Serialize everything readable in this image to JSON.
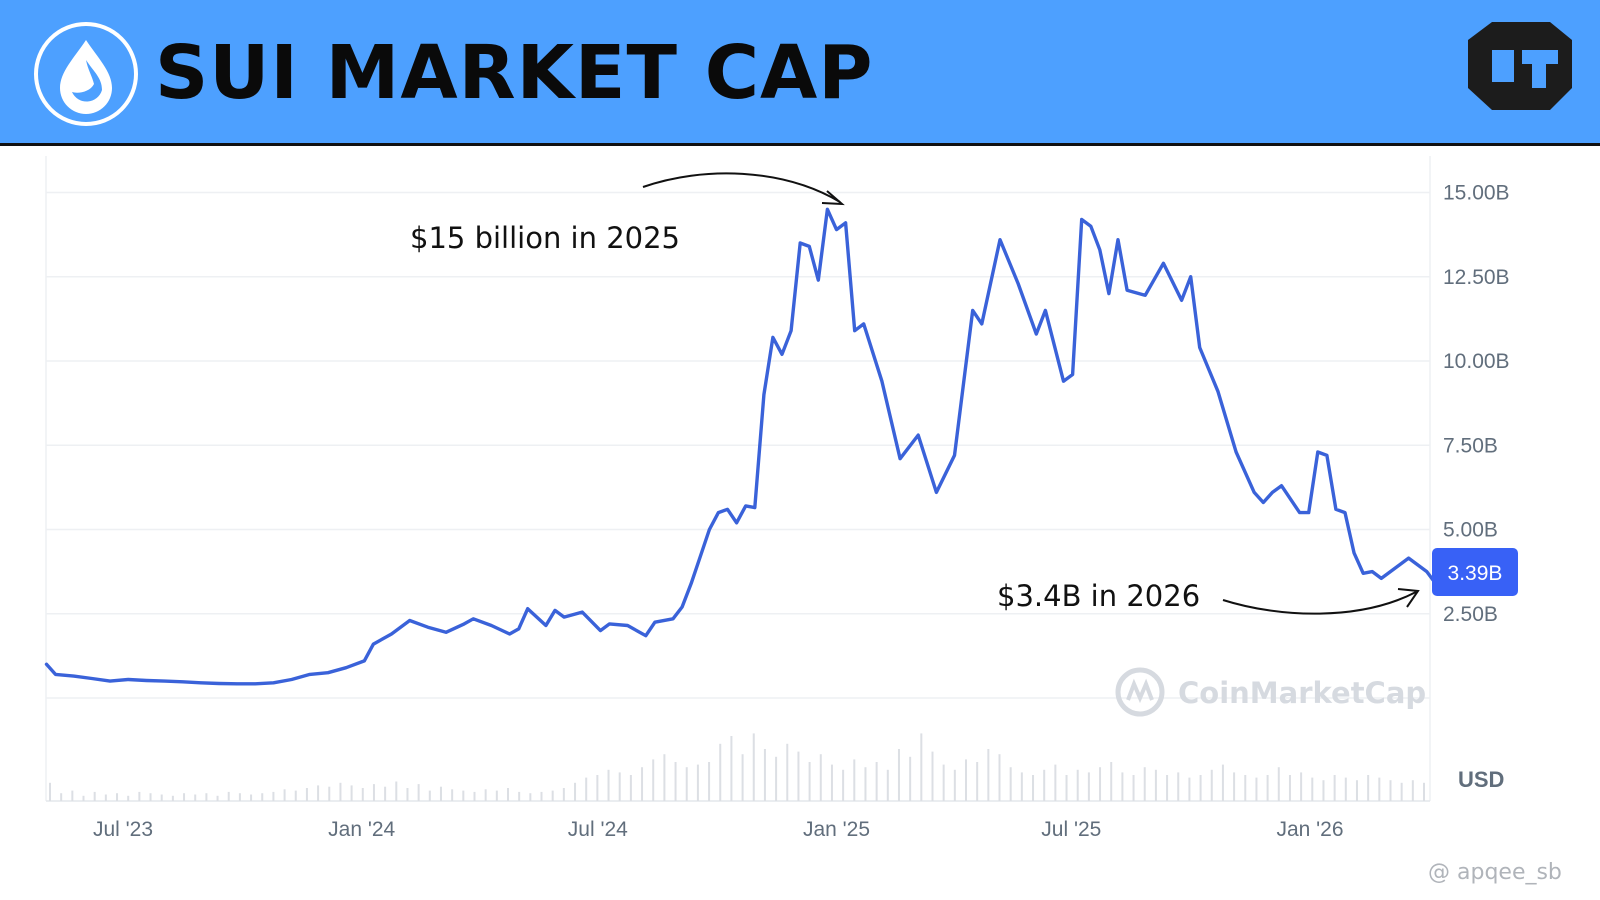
{
  "header": {
    "title": "SUI MARKET CAP",
    "background_color": "#4da0ff",
    "left_logo": "sui-drop-logo",
    "right_logo": "cube-brand-logo"
  },
  "chart_data": {
    "type": "line",
    "title": "SUI MARKET CAP",
    "y_unit": "USD",
    "ylim": [
      0,
      16
    ],
    "y_ticks": [
      2.5,
      5,
      7.5,
      10,
      12.5,
      15
    ],
    "y_tick_labels": [
      "2.50B",
      "5.00B",
      "7.50B",
      "10.00B",
      "12.50B",
      "15.00B"
    ],
    "x_tick_labels": [
      "Jul '23",
      "Jan '24",
      "Jul '24",
      "Jan '25",
      "Jul '25",
      "Jan '26"
    ],
    "x_tick_dates": [
      "2023-07-01",
      "2024-01-01",
      "2024-07-01",
      "2025-01-01",
      "2025-07-01",
      "2026-01-01"
    ],
    "series": [
      {
        "color": "#3a62d9",
        "points": [
          [
            "2023-05-03",
            1.0
          ],
          [
            "2023-05-10",
            0.7
          ],
          [
            "2023-05-24",
            0.65
          ],
          [
            "2023-06-07",
            0.58
          ],
          [
            "2023-06-21",
            0.5
          ],
          [
            "2023-07-05",
            0.55
          ],
          [
            "2023-07-19",
            0.52
          ],
          [
            "2023-08-02",
            0.5
          ],
          [
            "2023-08-16",
            0.48
          ],
          [
            "2023-08-30",
            0.45
          ],
          [
            "2023-09-13",
            0.43
          ],
          [
            "2023-09-27",
            0.42
          ],
          [
            "2023-10-11",
            0.42
          ],
          [
            "2023-10-25",
            0.45
          ],
          [
            "2023-11-08",
            0.55
          ],
          [
            "2023-11-22",
            0.7
          ],
          [
            "2023-12-06",
            0.75
          ],
          [
            "2023-12-20",
            0.9
          ],
          [
            "2024-01-03",
            1.1
          ],
          [
            "2024-01-10",
            1.6
          ],
          [
            "2024-01-24",
            1.9
          ],
          [
            "2024-02-07",
            2.3
          ],
          [
            "2024-02-21",
            2.1
          ],
          [
            "2024-03-06",
            1.95
          ],
          [
            "2024-03-20",
            2.2
          ],
          [
            "2024-03-27",
            2.35
          ],
          [
            "2024-04-10",
            2.15
          ],
          [
            "2024-04-24",
            1.9
          ],
          [
            "2024-05-01",
            2.05
          ],
          [
            "2024-05-08",
            2.65
          ],
          [
            "2024-05-22",
            2.15
          ],
          [
            "2024-05-29",
            2.6
          ],
          [
            "2024-06-05",
            2.4
          ],
          [
            "2024-06-19",
            2.55
          ],
          [
            "2024-07-03",
            2.0
          ],
          [
            "2024-07-10",
            2.2
          ],
          [
            "2024-07-24",
            2.15
          ],
          [
            "2024-08-07",
            1.85
          ],
          [
            "2024-08-14",
            2.25
          ],
          [
            "2024-08-28",
            2.35
          ],
          [
            "2024-09-04",
            2.7
          ],
          [
            "2024-09-11",
            3.4
          ],
          [
            "2024-09-18",
            4.2
          ],
          [
            "2024-09-25",
            5.0
          ],
          [
            "2024-10-02",
            5.5
          ],
          [
            "2024-10-09",
            5.6
          ],
          [
            "2024-10-16",
            5.2
          ],
          [
            "2024-10-23",
            5.7
          ],
          [
            "2024-10-30",
            5.65
          ],
          [
            "2024-11-06",
            9.0
          ],
          [
            "2024-11-13",
            10.7
          ],
          [
            "2024-11-20",
            10.2
          ],
          [
            "2024-11-27",
            10.9
          ],
          [
            "2024-12-04",
            13.5
          ],
          [
            "2024-12-11",
            13.4
          ],
          [
            "2024-12-18",
            12.4
          ],
          [
            "2024-12-25",
            14.5
          ],
          [
            "2025-01-01",
            13.9
          ],
          [
            "2025-01-08",
            14.1
          ],
          [
            "2025-01-15",
            10.9
          ],
          [
            "2025-01-22",
            11.1
          ],
          [
            "2025-02-05",
            9.4
          ],
          [
            "2025-02-19",
            7.1
          ],
          [
            "2025-03-05",
            7.8
          ],
          [
            "2025-03-19",
            6.1
          ],
          [
            "2025-04-02",
            7.2
          ],
          [
            "2025-04-16",
            11.5
          ],
          [
            "2025-04-23",
            11.1
          ],
          [
            "2025-05-07",
            13.6
          ],
          [
            "2025-05-21",
            12.3
          ],
          [
            "2025-06-04",
            10.8
          ],
          [
            "2025-06-11",
            11.5
          ],
          [
            "2025-06-25",
            9.4
          ],
          [
            "2025-07-02",
            9.6
          ],
          [
            "2025-07-09",
            14.2
          ],
          [
            "2025-07-16",
            14.0
          ],
          [
            "2025-07-23",
            13.3
          ],
          [
            "2025-07-30",
            12.0
          ],
          [
            "2025-08-06",
            13.6
          ],
          [
            "2025-08-13",
            12.1
          ],
          [
            "2025-08-27",
            11.95
          ],
          [
            "2025-09-10",
            12.9
          ],
          [
            "2025-09-24",
            11.8
          ],
          [
            "2025-10-01",
            12.5
          ],
          [
            "2025-10-08",
            10.4
          ],
          [
            "2025-10-22",
            9.1
          ],
          [
            "2025-11-05",
            7.3
          ],
          [
            "2025-11-19",
            6.1
          ],
          [
            "2025-11-26",
            5.8
          ],
          [
            "2025-12-03",
            6.1
          ],
          [
            "2025-12-10",
            6.3
          ],
          [
            "2025-12-24",
            5.5
          ],
          [
            "2025-12-31",
            5.5
          ],
          [
            "2026-01-07",
            7.3
          ],
          [
            "2026-01-14",
            7.2
          ],
          [
            "2026-01-21",
            5.6
          ],
          [
            "2026-01-28",
            5.5
          ],
          [
            "2026-02-04",
            4.3
          ],
          [
            "2026-02-11",
            3.7
          ],
          [
            "2026-02-18",
            3.75
          ],
          [
            "2026-02-25",
            3.55
          ],
          [
            "2026-03-04",
            3.75
          ],
          [
            "2026-03-18",
            4.15
          ],
          [
            "2026-04-01",
            3.75
          ],
          [
            "2026-04-08",
            3.39
          ]
        ]
      }
    ],
    "volume": [
      0.7,
      0.3,
      0.4,
      0.2,
      0.35,
      0.25,
      0.3,
      0.2,
      0.35,
      0.3,
      0.25,
      0.2,
      0.3,
      0.25,
      0.3,
      0.2,
      0.35,
      0.3,
      0.25,
      0.3,
      0.35,
      0.45,
      0.4,
      0.5,
      0.6,
      0.55,
      0.7,
      0.6,
      0.5,
      0.65,
      0.55,
      0.75,
      0.5,
      0.65,
      0.4,
      0.55,
      0.45,
      0.4,
      0.35,
      0.45,
      0.4,
      0.5,
      0.35,
      0.3,
      0.35,
      0.4,
      0.5,
      0.7,
      0.9,
      1.0,
      1.2,
      1.1,
      1.0,
      1.3,
      1.6,
      1.8,
      1.5,
      1.3,
      1.4,
      1.5,
      2.2,
      2.5,
      1.8,
      2.6,
      2.0,
      1.7,
      2.2,
      1.9,
      1.5,
      1.8,
      1.4,
      1.2,
      1.6,
      1.3,
      1.5,
      1.2,
      2.0,
      1.7,
      2.6,
      1.9,
      1.4,
      1.2,
      1.6,
      1.5,
      2.0,
      1.8,
      1.3,
      1.1,
      1.0,
      1.2,
      1.4,
      1.0,
      1.2,
      1.1,
      1.3,
      1.5,
      1.1,
      1.0,
      1.3,
      1.2,
      1.0,
      1.1,
      0.9,
      1.0,
      1.2,
      1.4,
      1.1,
      1.0,
      0.9,
      1.0,
      1.3,
      1.0,
      1.1,
      0.9,
      0.8,
      1.0,
      0.9,
      0.8,
      1.0,
      0.9,
      0.8,
      0.7,
      0.8,
      0.7
    ],
    "volume_color": "#dcdfe4",
    "last_value_label": "3.39B",
    "last_value_color": "#3861f6",
    "annotations": [
      {
        "text": "$15 billion in 2025",
        "date": "2024-12-25",
        "value": 14.5
      },
      {
        "text": "$3.4B in 2026",
        "date": "2026-04-08",
        "value": 3.39
      }
    ],
    "grid": true,
    "chart_watermark": "CoinMarketCap"
  },
  "footer": {
    "watermark": "@ apqee_sb"
  }
}
